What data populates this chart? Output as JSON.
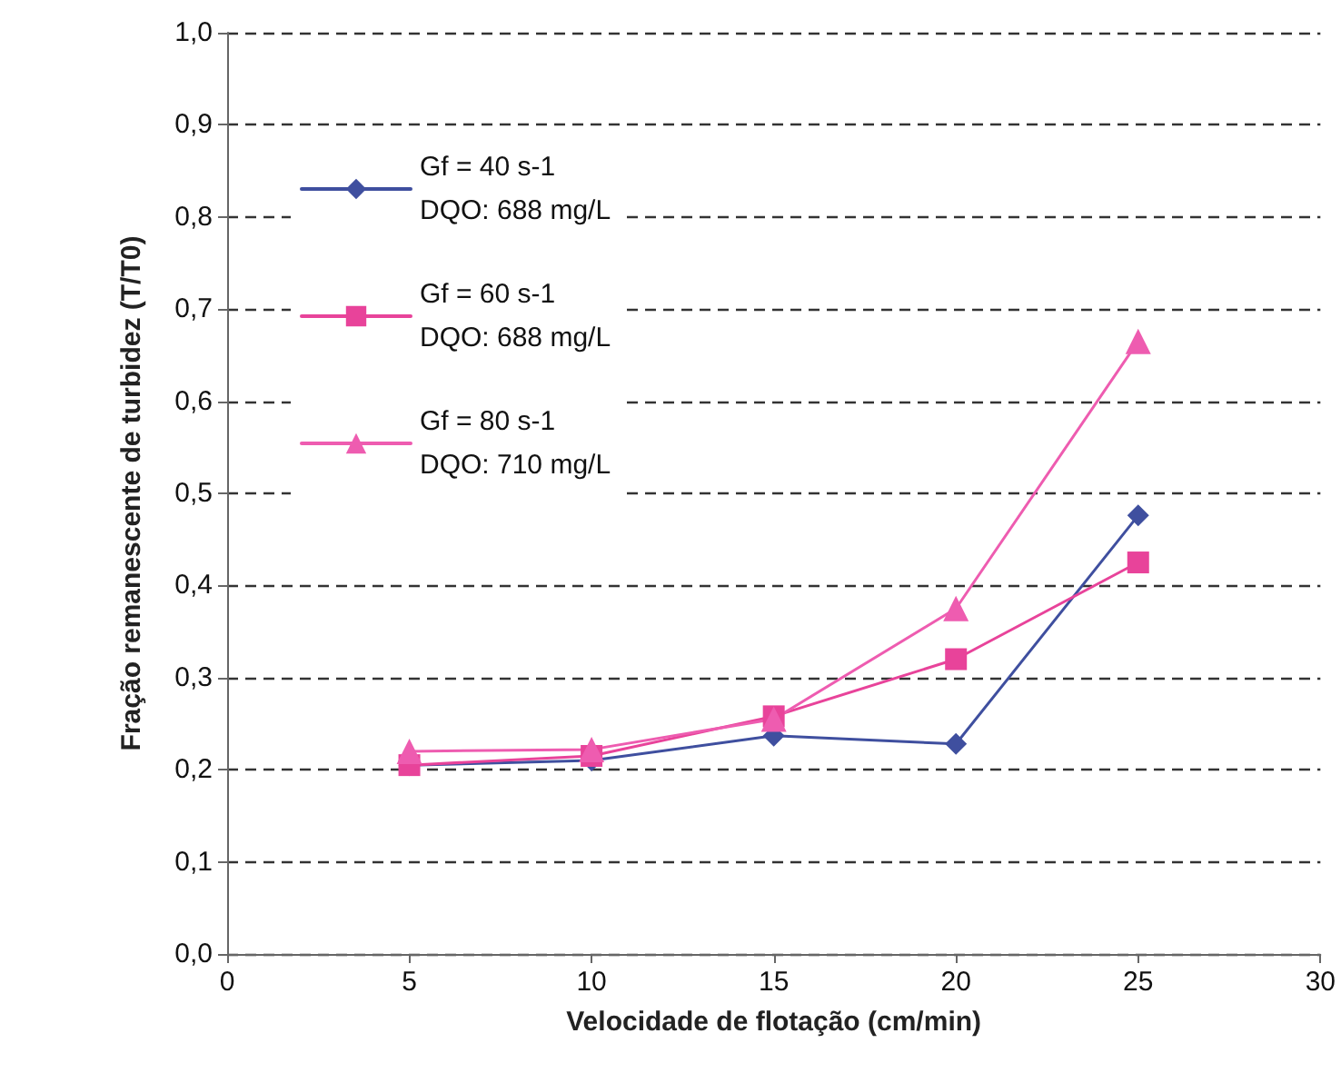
{
  "chart_data": {
    "type": "line",
    "xlabel": "Velocidade de flotação (cm/min)",
    "ylabel": "Fração remanescente de turbidez (T/T0)",
    "x": [
      5,
      10,
      15,
      20,
      25
    ],
    "series": [
      {
        "name": "Gf = 40 s-1\nDQO: 688 mg/L",
        "color": "#3f4f9f",
        "marker": "diamond",
        "values": [
          0.205,
          0.21,
          0.237,
          0.228,
          0.476
        ]
      },
      {
        "name": "Gf = 60 s-1\nDQO: 688 mg/L",
        "color": "#e8439a",
        "marker": "square",
        "values": [
          0.205,
          0.215,
          0.258,
          0.32,
          0.425
        ]
      },
      {
        "name": "Gf = 80 s-1\nDQO: 710 mg/L",
        "color": "#ee5cb0",
        "marker": "triangle",
        "values": [
          0.22,
          0.222,
          0.255,
          0.375,
          0.665
        ]
      }
    ],
    "xlim": [
      0,
      30
    ],
    "xticks": [
      0,
      5,
      10,
      15,
      20,
      25,
      30
    ],
    "ylim": [
      0,
      1
    ],
    "yticks": [
      {
        "value": 0,
        "label": "0,0"
      },
      {
        "value": 0.1,
        "label": "0,1"
      },
      {
        "value": 0.2,
        "label": "0,2"
      },
      {
        "value": 0.3,
        "label": "0,3"
      },
      {
        "value": 0.4,
        "label": "0,4"
      },
      {
        "value": 0.5,
        "label": "0,5"
      },
      {
        "value": 0.6,
        "label": "0,6"
      },
      {
        "value": 0.7,
        "label": "0,7"
      },
      {
        "value": 0.8,
        "label": "0,8"
      },
      {
        "value": 0.9,
        "label": "0,9"
      },
      {
        "value": 1,
        "label": "1,0"
      }
    ],
    "grid": "y",
    "legend": "top left",
    "line_style": "solid"
  }
}
